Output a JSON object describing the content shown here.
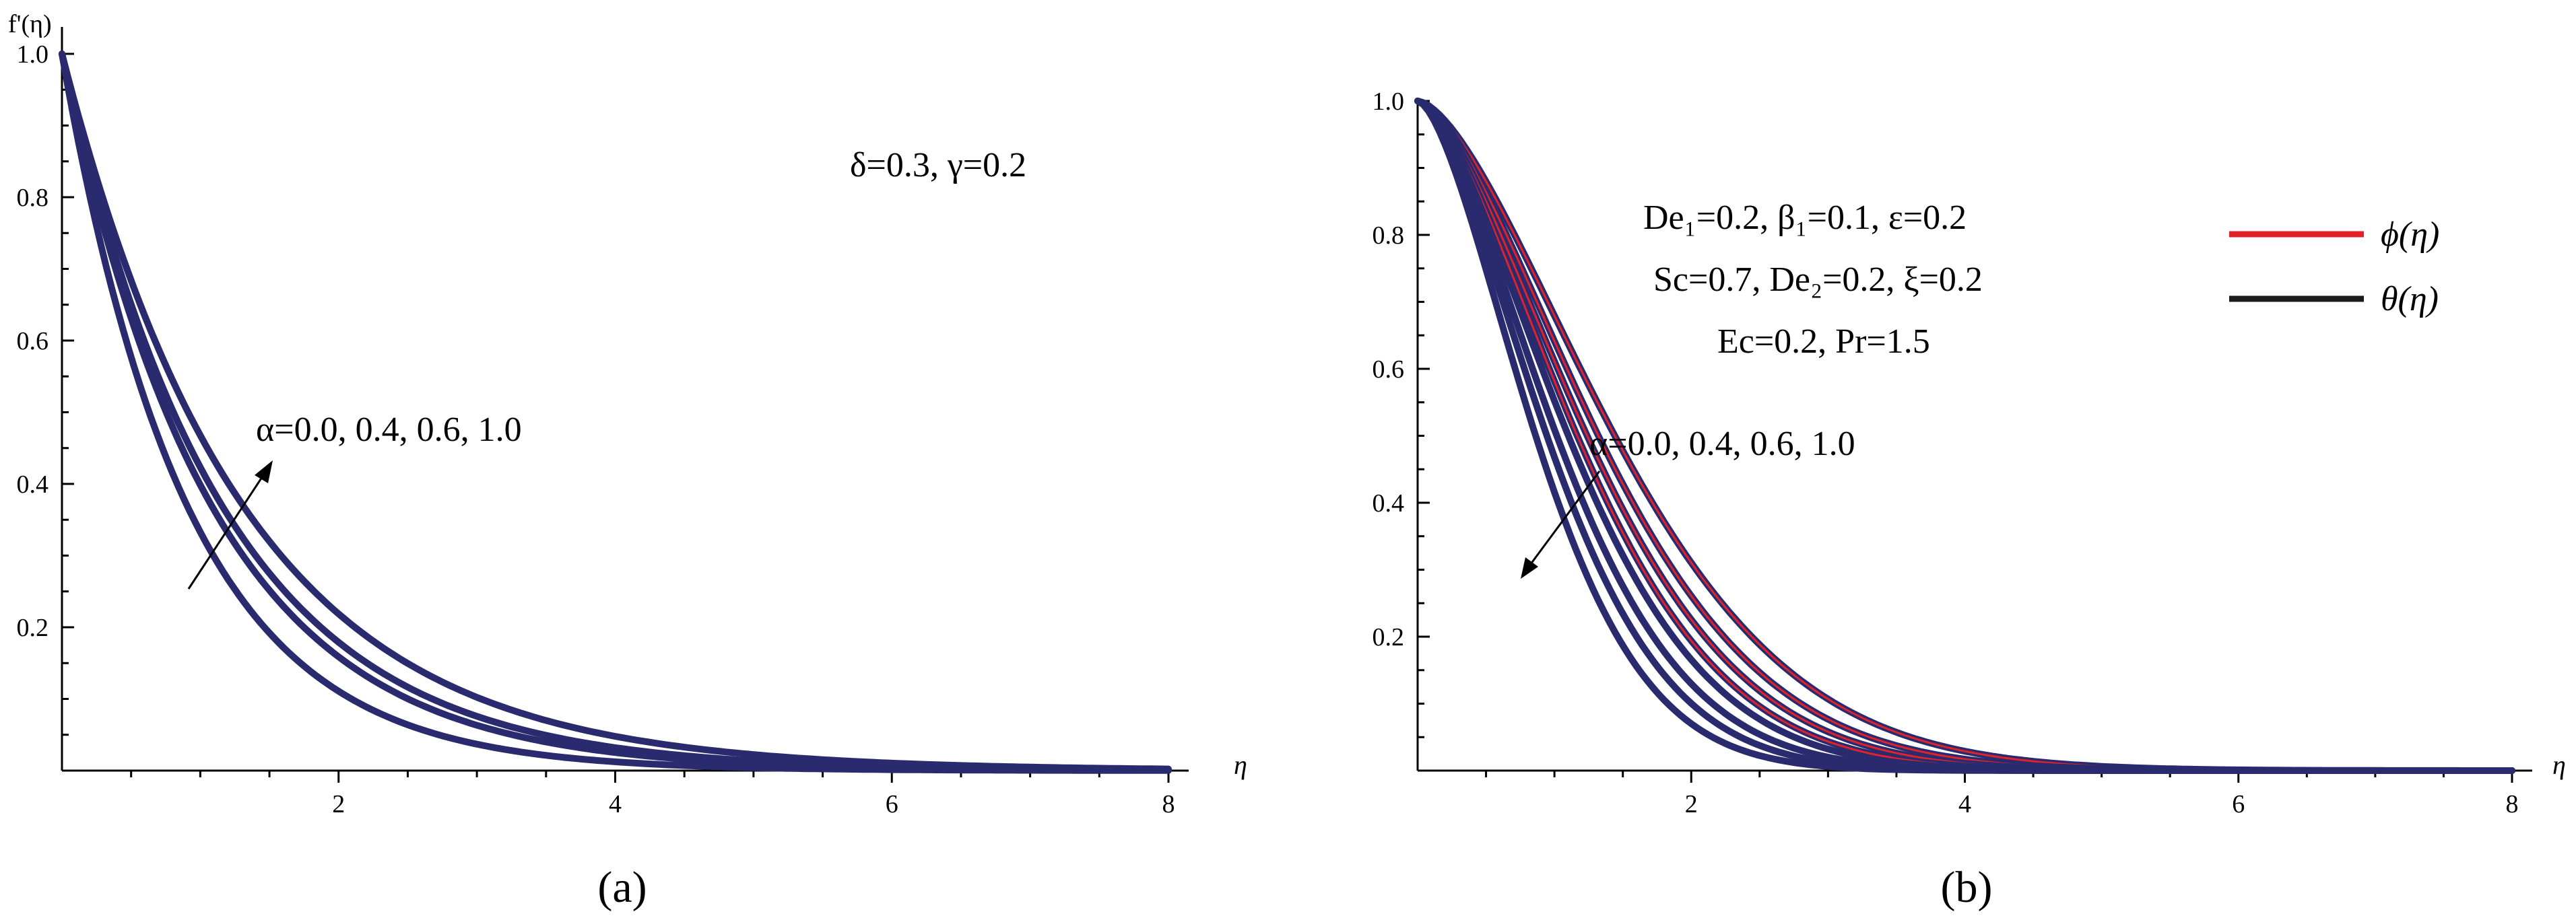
{
  "colors": {
    "curve": "#2a2a6e",
    "phi": "#e0222a",
    "theta": "#1a1a1a"
  },
  "chart_data": [
    {
      "type": "line",
      "panel_label": "(a)",
      "ylabel": "f'(η)",
      "xlabel": "η",
      "xlim": [
        0,
        8.2
      ],
      "ylim": [
        0,
        1.03
      ],
      "xticks": [
        "2",
        "4",
        "6",
        "8"
      ],
      "yticks": [
        "0.2",
        "0.4",
        "0.6",
        "0.8",
        "1.0"
      ],
      "annotations": {
        "params": "δ=0.3, γ=0.2",
        "alpha": "α=0.0, 0.4, 0.6, 1.0"
      },
      "series": [
        {
          "name": "α=0.0",
          "decay": 1.1
        },
        {
          "name": "α=0.4",
          "decay": 0.92
        },
        {
          "name": "α=0.6",
          "decay": 0.86
        },
        {
          "name": "α=1.0",
          "decay": 0.76
        }
      ]
    },
    {
      "type": "line",
      "panel_label": "(b)",
      "xlabel": "η",
      "xlim": [
        0,
        8.2
      ],
      "ylim": [
        0,
        1.03
      ],
      "xticks": [
        "2",
        "4",
        "6",
        "8"
      ],
      "yticks": [
        "0.2",
        "0.4",
        "0.6",
        "0.8",
        "1.0"
      ],
      "annotations": {
        "line1": "De₁=0.2, β₁=0.1, ε=0.2",
        "line2": "Sc=0.7, De₂=0.2, ξ=0.2",
        "line3": "Ec=0.2, Pr=1.5",
        "alpha": "α=0.0, 0.4, 0.6, 1.0"
      },
      "legend": [
        {
          "label": "ϕ(η)",
          "color": "#e0222a"
        },
        {
          "label": "θ(η)",
          "color": "#1a1a1a"
        }
      ],
      "series": [
        {
          "name": "ϕ α=0.0",
          "kind": "phi",
          "k": 0.55
        },
        {
          "name": "ϕ α=0.4",
          "kind": "phi",
          "k": 0.6
        },
        {
          "name": "ϕ α=0.6",
          "kind": "phi",
          "k": 0.64
        },
        {
          "name": "ϕ α=1.0",
          "kind": "phi",
          "k": 0.68
        },
        {
          "name": "θ α=0.0",
          "kind": "theta",
          "k": 0.72
        },
        {
          "name": "θ α=0.4",
          "kind": "theta",
          "k": 0.78
        },
        {
          "name": "θ α=0.6",
          "kind": "theta",
          "k": 0.84
        },
        {
          "name": "θ α=1.0",
          "kind": "theta",
          "k": 0.92
        }
      ]
    }
  ]
}
